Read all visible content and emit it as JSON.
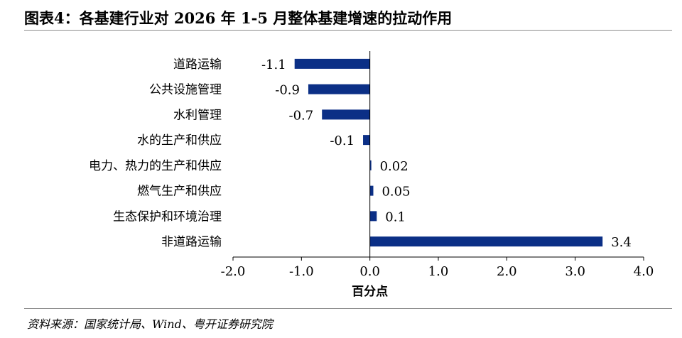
{
  "title": "图表4：各基建行业对 2026 年 1-5 月整体基建增速的拉动作用",
  "source": "资料来源：国家统计局、Wind、粤开证券研究院",
  "chart_data": {
    "type": "bar",
    "orientation": "horizontal",
    "categories": [
      "道路运输",
      "公共设施管理",
      "水利管理",
      "水的生产和供应",
      "电力、热力的生产和供应",
      "燃气生产和供应",
      "生态保护和环境治理",
      "非道路运输"
    ],
    "values": [
      -1.1,
      -0.9,
      -0.7,
      -0.1,
      0.02,
      0.05,
      0.1,
      3.4
    ],
    "value_labels": [
      "-1.1",
      "-0.9",
      "-0.7",
      "-0.1",
      "0.02",
      "0.05",
      "0.1",
      "3.4"
    ],
    "xlabel": "百分点",
    "xlim": [
      -2.0,
      4.0
    ],
    "xticks": [
      "-2.0",
      "-1.0",
      "0.0",
      "1.0",
      "2.0",
      "3.0",
      "4.0"
    ],
    "bar_color": "#0b2f86",
    "grid": false,
    "legend": "none"
  }
}
